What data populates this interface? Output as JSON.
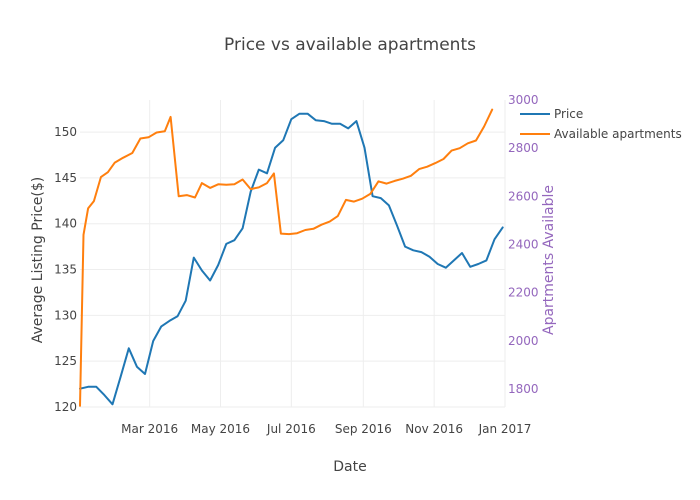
{
  "chart_data": {
    "type": "line",
    "title": "Price vs available apartments",
    "xlabel": "Date",
    "ylabel": "Average Listing Price($)",
    "y2label": "Apartments Available",
    "x_start": "2016-01-01",
    "x_end": "2017-01-01",
    "ylim": [
      120,
      153.5
    ],
    "y2lim": [
      1725,
      3000
    ],
    "x_ticks": [
      {
        "date": "2016-03-01",
        "label": "Mar 2016"
      },
      {
        "date": "2016-05-01",
        "label": "May 2016"
      },
      {
        "date": "2016-07-01",
        "label": "Jul 2016"
      },
      {
        "date": "2016-09-01",
        "label": "Sep 2016"
      },
      {
        "date": "2016-11-01",
        "label": "Nov 2016"
      },
      {
        "date": "2017-01-01",
        "label": "Jan 2017"
      }
    ],
    "y_ticks": [
      120,
      125,
      130,
      135,
      140,
      145,
      150
    ],
    "y2_ticks": [
      1800,
      2000,
      2200,
      2400,
      2600,
      2800,
      3000
    ],
    "grid": true,
    "legend_position": "top-right",
    "series": [
      {
        "name": "Price",
        "axis": "left",
        "color": "#1f77b4",
        "points": [
          [
            "2016-01-01",
            122.0
          ],
          [
            "2016-01-08",
            122.2
          ],
          [
            "2016-01-15",
            122.2
          ],
          [
            "2016-01-22",
            121.3
          ],
          [
            "2016-01-29",
            120.3
          ],
          [
            "2016-02-05",
            123.3
          ],
          [
            "2016-02-12",
            126.4
          ],
          [
            "2016-02-19",
            124.4
          ],
          [
            "2016-02-26",
            123.6
          ],
          [
            "2016-03-04",
            127.2
          ],
          [
            "2016-03-11",
            128.8
          ],
          [
            "2016-03-18",
            129.4
          ],
          [
            "2016-03-25",
            129.9
          ],
          [
            "2016-04-01",
            131.6
          ],
          [
            "2016-04-08",
            136.3
          ],
          [
            "2016-04-15",
            134.9
          ],
          [
            "2016-04-22",
            133.8
          ],
          [
            "2016-04-29",
            135.5
          ],
          [
            "2016-05-06",
            137.8
          ],
          [
            "2016-05-13",
            138.2
          ],
          [
            "2016-05-20",
            139.5
          ],
          [
            "2016-05-27",
            143.5
          ],
          [
            "2016-06-03",
            145.9
          ],
          [
            "2016-06-10",
            145.5
          ],
          [
            "2016-06-17",
            148.3
          ],
          [
            "2016-06-24",
            149.1
          ],
          [
            "2016-07-01",
            151.4
          ],
          [
            "2016-07-08",
            152.0
          ],
          [
            "2016-07-15",
            152.0
          ],
          [
            "2016-07-22",
            151.3
          ],
          [
            "2016-07-29",
            151.2
          ],
          [
            "2016-08-05",
            150.9
          ],
          [
            "2016-08-12",
            150.9
          ],
          [
            "2016-08-19",
            150.4
          ],
          [
            "2016-08-26",
            151.2
          ],
          [
            "2016-09-02",
            148.3
          ],
          [
            "2016-09-09",
            143.0
          ],
          [
            "2016-09-16",
            142.8
          ],
          [
            "2016-09-23",
            142.0
          ],
          [
            "2016-09-30",
            139.8
          ],
          [
            "2016-10-07",
            137.5
          ],
          [
            "2016-10-14",
            137.1
          ],
          [
            "2016-10-21",
            136.9
          ],
          [
            "2016-10-28",
            136.4
          ],
          [
            "2016-11-04",
            135.6
          ],
          [
            "2016-11-11",
            135.2
          ],
          [
            "2016-11-18",
            136.0
          ],
          [
            "2016-11-25",
            136.8
          ],
          [
            "2016-12-02",
            135.3
          ],
          [
            "2016-12-09",
            135.6
          ],
          [
            "2016-12-16",
            136.0
          ],
          [
            "2016-12-23",
            138.3
          ],
          [
            "2016-12-30",
            139.6
          ]
        ]
      },
      {
        "name": "Available apartments",
        "axis": "right",
        "color": "#ff7f0e",
        "points": [
          [
            "2016-01-01",
            1730
          ],
          [
            "2016-01-04",
            2440
          ],
          [
            "2016-01-08",
            2550
          ],
          [
            "2016-01-13",
            2580
          ],
          [
            "2016-01-19",
            2680
          ],
          [
            "2016-01-25",
            2700
          ],
          [
            "2016-01-31",
            2740
          ],
          [
            "2016-02-07",
            2760
          ],
          [
            "2016-02-15",
            2780
          ],
          [
            "2016-02-22",
            2840
          ],
          [
            "2016-02-29",
            2845
          ],
          [
            "2016-03-07",
            2865
          ],
          [
            "2016-03-14",
            2870
          ],
          [
            "2016-03-19",
            2930
          ],
          [
            "2016-03-26",
            2600
          ],
          [
            "2016-04-02",
            2605
          ],
          [
            "2016-04-09",
            2595
          ],
          [
            "2016-04-15",
            2655
          ],
          [
            "2016-04-22",
            2635
          ],
          [
            "2016-04-29",
            2650
          ],
          [
            "2016-05-06",
            2648
          ],
          [
            "2016-05-13",
            2650
          ],
          [
            "2016-05-20",
            2670
          ],
          [
            "2016-05-27",
            2630
          ],
          [
            "2016-06-03",
            2637
          ],
          [
            "2016-06-10",
            2655
          ],
          [
            "2016-06-16",
            2695
          ],
          [
            "2016-06-22",
            2445
          ],
          [
            "2016-06-29",
            2443
          ],
          [
            "2016-07-06",
            2447
          ],
          [
            "2016-07-13",
            2460
          ],
          [
            "2016-07-20",
            2465
          ],
          [
            "2016-07-27",
            2482
          ],
          [
            "2016-08-03",
            2495
          ],
          [
            "2016-08-10",
            2518
          ],
          [
            "2016-08-17",
            2585
          ],
          [
            "2016-08-24",
            2578
          ],
          [
            "2016-08-31",
            2590
          ],
          [
            "2016-09-07",
            2610
          ],
          [
            "2016-09-14",
            2662
          ],
          [
            "2016-09-21",
            2653
          ],
          [
            "2016-09-28",
            2664
          ],
          [
            "2016-10-05",
            2673
          ],
          [
            "2016-10-12",
            2685
          ],
          [
            "2016-10-19",
            2713
          ],
          [
            "2016-10-26",
            2723
          ],
          [
            "2016-11-02",
            2738
          ],
          [
            "2016-11-09",
            2755
          ],
          [
            "2016-11-16",
            2790
          ],
          [
            "2016-11-23",
            2800
          ],
          [
            "2016-11-30",
            2820
          ],
          [
            "2016-12-07",
            2832
          ],
          [
            "2016-12-14",
            2890
          ],
          [
            "2016-12-21",
            2960
          ]
        ]
      }
    ]
  }
}
